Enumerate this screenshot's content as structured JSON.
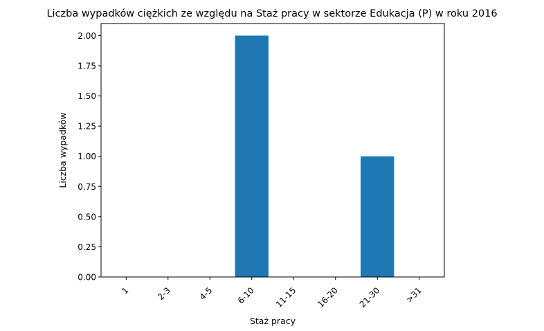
{
  "chart_data": {
    "type": "bar",
    "title": "Liczba wypadków ciężkich ze względu na Staż pracy w sektorze Edukacja  (P)   w roku 2016",
    "xlabel": "Staż pracy",
    "ylabel": "Liczba wypadków",
    "categories": [
      "1",
      "2-3",
      "4-5",
      "6-10",
      "11-15",
      "16-20",
      "21-30",
      ">31"
    ],
    "values": [
      0,
      0,
      0,
      2,
      0,
      0,
      1,
      0
    ],
    "ylim": [
      0,
      2.1
    ],
    "yticks": [
      0.0,
      0.25,
      0.5,
      0.75,
      1.0,
      1.25,
      1.5,
      1.75,
      2.0
    ],
    "ytick_labels": [
      "0.00",
      "0.25",
      "0.50",
      "0.75",
      "1.00",
      "1.25",
      "1.50",
      "1.75",
      "2.00"
    ],
    "grid": false,
    "bar_color": "#1f77b4"
  }
}
